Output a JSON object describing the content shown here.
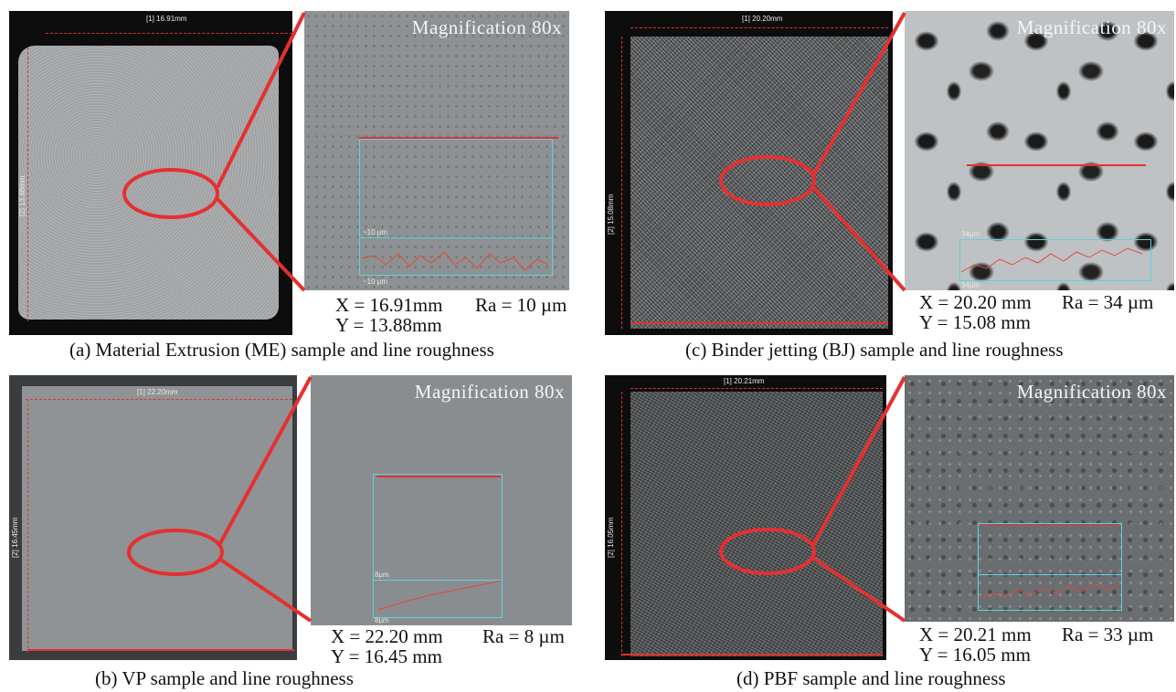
{
  "magnification_label": "Magnification  80x",
  "panels": {
    "a": {
      "ruler_x": "[1] 16.91mm",
      "ruler_y": "[2] 13.88mm",
      "scale_top": "~10 µm",
      "scale_bottom": "~10 µm",
      "x_value": "X = 16.91mm",
      "y_value": "Y = 13.88mm",
      "ra_value": "Ra = 10 µm",
      "caption": "(a) Material Extrusion (ME) sample and line roughness"
    },
    "b": {
      "ruler_x": "[1] 22.20mm",
      "ruler_y": "[2] 16.45mm",
      "scale_top": "8µm",
      "scale_bottom": "8µm",
      "x_value": "X = 22.20 mm",
      "y_value": "Y = 16.45 mm",
      "ra_value": "Ra = 8 µm",
      "caption": "(b) VP sample and line roughness"
    },
    "c": {
      "ruler_x": "[1] 20.20mm",
      "ruler_y": "[2] 15.08mm",
      "scale_top": "34µm",
      "scale_bottom": "34µm",
      "x_value": "X = 20.20 mm",
      "y_value": "Y = 15.08 mm",
      "ra_value": "Ra = 34 µm",
      "caption": "(c) Binder jetting (BJ) sample and line roughness"
    },
    "d": {
      "ruler_x": "[1] 20.21mm",
      "ruler_y": "[2] 16.05mm",
      "x_value": "X = 20.21 mm",
      "y_value": "Y = 16.05 mm",
      "ra_value": "Ra = 33 µm",
      "caption": "(d) PBF sample and line roughness"
    }
  },
  "colors": {
    "highlight_red": "#e53030",
    "profile_cyan": "#5fd2d6",
    "text": "#111111"
  }
}
